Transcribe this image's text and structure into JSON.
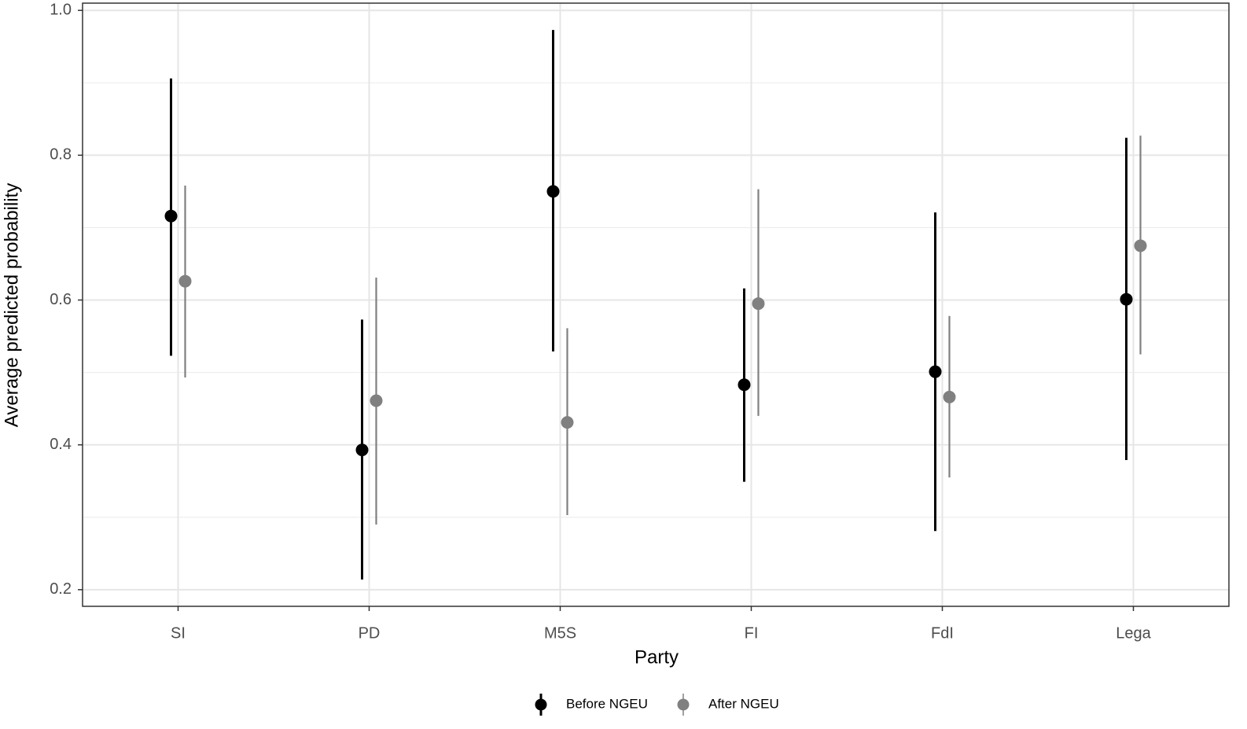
{
  "chart_data": {
    "type": "pointrange",
    "x_label": "Party",
    "y_label": "Average predicted probability",
    "categories": [
      "SI",
      "PD",
      "M5S",
      "FI",
      "FdI",
      "Lega"
    ],
    "series": [
      {
        "name": "Before NGEU",
        "color": "#000000",
        "values": [
          0.716,
          0.393,
          0.75,
          0.483,
          0.501,
          0.601
        ],
        "lower": [
          0.523,
          0.214,
          0.529,
          0.349,
          0.281,
          0.379
        ],
        "upper": [
          0.906,
          0.573,
          0.973,
          0.616,
          0.721,
          0.824
        ]
      },
      {
        "name": "After NGEU",
        "color": "#808080",
        "values": [
          0.626,
          0.461,
          0.431,
          0.595,
          0.466,
          0.675
        ],
        "lower": [
          0.493,
          0.29,
          0.303,
          0.44,
          0.355,
          0.525
        ],
        "upper": [
          0.758,
          0.631,
          0.561,
          0.753,
          0.578,
          0.827
        ]
      }
    ],
    "ylim": [
      0.177,
      1.01
    ],
    "yticks": [
      {
        "value": 0.2,
        "label": "0.2"
      },
      {
        "value": 0.4,
        "label": "0.4"
      },
      {
        "value": 0.6,
        "label": "0.6"
      },
      {
        "value": 0.8,
        "label": "0.8"
      },
      {
        "value": 1.0,
        "label": "1.0"
      }
    ],
    "minor_yticks": [
      0.3,
      0.5,
      0.7,
      0.9
    ],
    "grid": true,
    "legend_position": "bottom"
  }
}
